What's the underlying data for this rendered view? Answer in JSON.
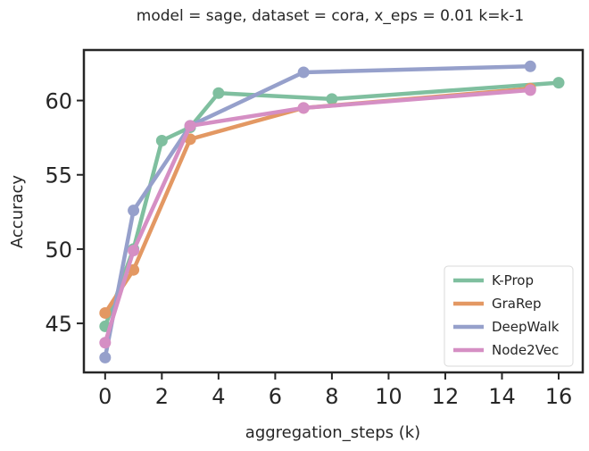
{
  "chart_data": {
    "type": "line",
    "title": "model = sage,  dataset = cora, x_eps = 0.01 k=k-1",
    "xlabel": "aggregation_steps (k)",
    "ylabel": "Accuracy",
    "xlim": [
      -0.75,
      16.85
    ],
    "ylim": [
      41.7,
      63.4
    ],
    "xticks": [
      0,
      2,
      4,
      6,
      8,
      10,
      12,
      14,
      16
    ],
    "yticks": [
      45,
      50,
      55,
      60
    ],
    "grid": false,
    "legend_position": "bottom-right",
    "series": [
      {
        "name": "K-Prop",
        "color": "#7fbf9f",
        "x": [
          0,
          1,
          2,
          3,
          4,
          8,
          16
        ],
        "y": [
          44.8,
          50.0,
          57.3,
          58.2,
          60.5,
          60.1,
          61.2
        ]
      },
      {
        "name": "GraRep",
        "color": "#e39863",
        "x": [
          0,
          1,
          3,
          7,
          15
        ],
        "y": [
          45.7,
          48.6,
          57.4,
          59.5,
          60.8
        ]
      },
      {
        "name": "DeepWalk",
        "color": "#96a0cb",
        "x": [
          0,
          1,
          3,
          7,
          15
        ],
        "y": [
          42.7,
          52.6,
          58.3,
          61.9,
          62.3
        ]
      },
      {
        "name": "Node2Vec",
        "color": "#d58fc4",
        "x": [
          0,
          1,
          3,
          7,
          15
        ],
        "y": [
          43.7,
          49.9,
          58.3,
          59.5,
          60.7
        ]
      }
    ]
  }
}
